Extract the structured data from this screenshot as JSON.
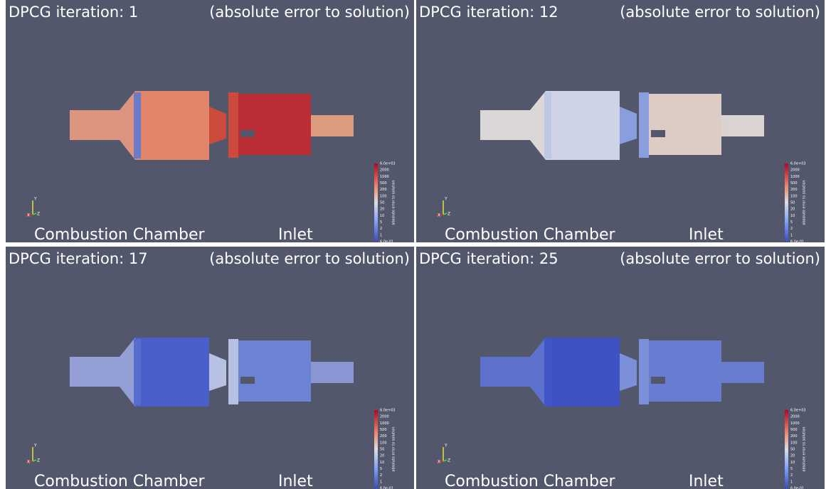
{
  "panels": [
    {
      "title": "DPCG iteration: 1",
      "subtitle": "(absolute error to solution)",
      "labels": [
        "Combustion Chamber",
        "Inlet"
      ],
      "colorbar": {
        "title": "absolute error to solution",
        "ticks": [
          "6.0e+03",
          "2000",
          "1000",
          "500",
          "200",
          "100",
          "50",
          "20",
          "10",
          "5",
          "2",
          "1",
          "6.0e-01"
        ]
      },
      "axes": [
        "Y",
        "X",
        "Z"
      ]
    },
    {
      "title": "DPCG iteration: 12",
      "subtitle": "(absolute error to solution)",
      "labels": [
        "Combustion Chamber",
        "Inlet"
      ],
      "colorbar": {
        "title": "absolute error to solution",
        "ticks": [
          "6.0e+03",
          "2000",
          "1000",
          "500",
          "200",
          "100",
          "50",
          "20",
          "10",
          "5",
          "2",
          "1",
          "6.0e-01"
        ]
      },
      "axes": [
        "Y",
        "X",
        "Z"
      ]
    },
    {
      "title": "DPCG iteration: 17",
      "subtitle": "(absolute error to solution)",
      "labels": [
        "Combustion Chamber",
        "Inlet"
      ],
      "colorbar": {
        "title": "absolute error to solution",
        "ticks": [
          "6.0e+03",
          "2000",
          "1000",
          "500",
          "200",
          "100",
          "50",
          "20",
          "10",
          "5",
          "2",
          "1",
          "6.0e-01"
        ]
      },
      "axes": [
        "Y",
        "X",
        "Z"
      ]
    },
    {
      "title": "DPCG iteration: 25",
      "subtitle": "(absolute error to solution)",
      "labels": [
        "Combustion Chamber",
        "Inlet"
      ],
      "colorbar": {
        "title": "absolute error to solution",
        "ticks": [
          "6.0e+03",
          "2000",
          "1000",
          "500",
          "200",
          "100",
          "50",
          "20",
          "10",
          "5",
          "2",
          "1",
          "6.0e-01"
        ]
      },
      "axes": [
        "Y",
        "X",
        "Z"
      ]
    }
  ]
}
